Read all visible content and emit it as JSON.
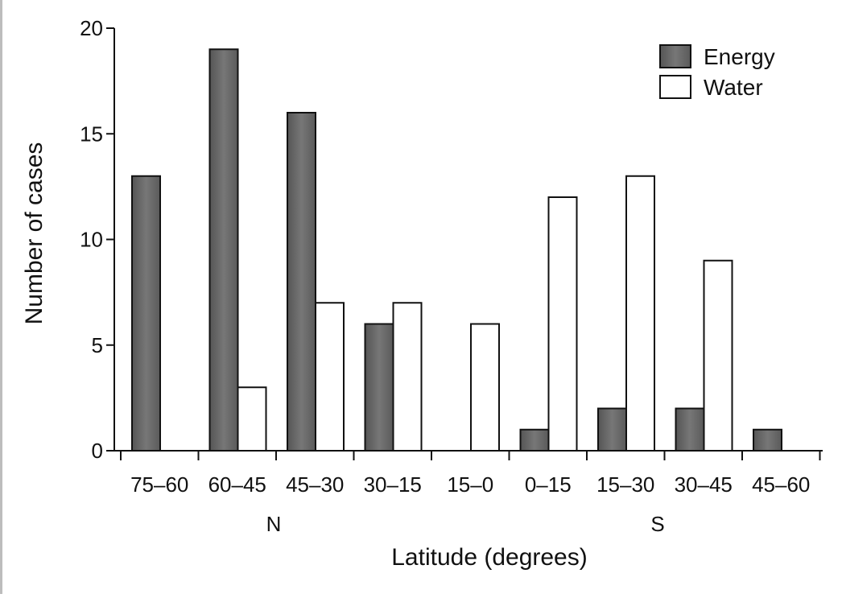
{
  "chart_data": {
    "type": "bar",
    "title": "",
    "xlabel": "Latitude (degrees)",
    "ylabel": "Number of cases",
    "categories": [
      "75–60",
      "60–45",
      "45–30",
      "30–15",
      "15–0",
      "0–15",
      "15–30",
      "30–45",
      "45–60"
    ],
    "hemisphere_labels": [
      "N",
      "S"
    ],
    "series": [
      {
        "name": "Energy",
        "values": [
          13,
          19,
          16,
          6,
          0,
          1,
          2,
          2,
          1
        ],
        "color": "#6e6e6e"
      },
      {
        "name": "Water",
        "values": [
          0,
          3,
          7,
          7,
          6,
          12,
          13,
          9,
          0
        ],
        "color": "#ffffff"
      }
    ],
    "ylim": [
      0,
      20
    ],
    "yticks": [
      0,
      5,
      10,
      15,
      20
    ],
    "grid": false,
    "legend": "top-right"
  }
}
